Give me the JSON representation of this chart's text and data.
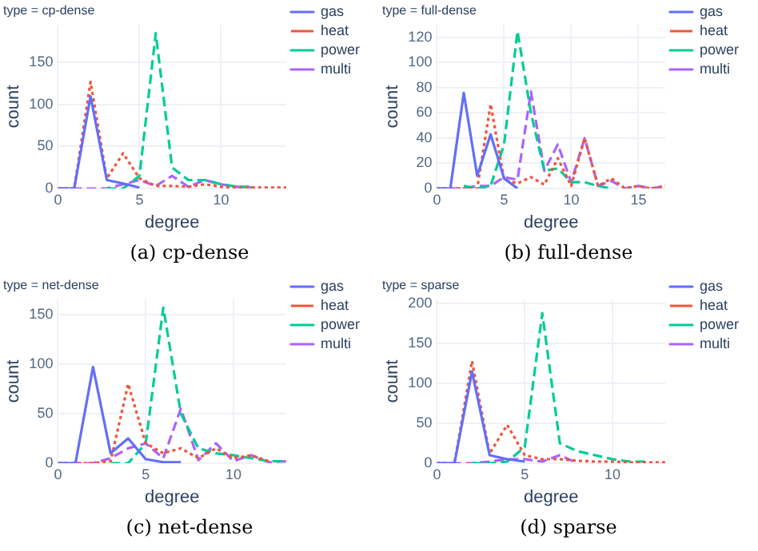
{
  "chart_data": [
    {
      "type": "line",
      "title": "type = cp-dense",
      "xlabel": "degree",
      "ylabel": "count",
      "annotations": [
        "(a) cp-dense"
      ],
      "xlim": [
        0,
        14
      ],
      "xticks": [
        0,
        5,
        10
      ],
      "ylim": [
        0,
        195
      ],
      "yticks": [
        0,
        50,
        100,
        150
      ],
      "grid": true,
      "legend": "top right",
      "series": [
        {
          "name": "gas",
          "color": "#636efa",
          "line_style": "solid",
          "x": [
            0,
            1,
            2,
            3,
            4,
            5
          ],
          "values": [
            0,
            0,
            110,
            10,
            6,
            1
          ]
        },
        {
          "name": "heat",
          "color": "#ef553b",
          "line_style": "dotted",
          "x": [
            0,
            1,
            2,
            3,
            4,
            5,
            6,
            7,
            8,
            9,
            10,
            11,
            12,
            13,
            14
          ],
          "values": [
            0,
            0,
            127,
            12,
            42,
            12,
            3,
            3,
            2,
            5,
            2,
            1,
            1,
            1,
            1
          ]
        },
        {
          "name": "power",
          "color": "#00cc96",
          "line_style": "dashed",
          "x": [
            3,
            4,
            5,
            6,
            7,
            8,
            9,
            10,
            11,
            12
          ],
          "values": [
            0,
            0,
            15,
            185,
            25,
            10,
            10,
            5,
            2,
            2
          ]
        },
        {
          "name": "multi",
          "color": "#ab63fa",
          "line_style": "dashed",
          "x": [
            0,
            1,
            2,
            3,
            4,
            5,
            6,
            7,
            8,
            9,
            10,
            11,
            12
          ],
          "values": [
            0,
            0,
            0,
            0,
            5,
            10,
            3,
            15,
            2,
            10,
            5,
            2,
            1
          ]
        }
      ]
    },
    {
      "type": "line",
      "title": "type = full-dense",
      "xlabel": "degree",
      "ylabel": "count",
      "annotations": [
        "(b) full-dense"
      ],
      "xlim": [
        0,
        17
      ],
      "xticks": [
        0,
        5,
        10,
        15
      ],
      "ylim": [
        0,
        130
      ],
      "yticks": [
        0,
        20,
        40,
        60,
        80,
        100,
        120
      ],
      "grid": true,
      "legend": "top right",
      "series": [
        {
          "name": "gas",
          "color": "#636efa",
          "line_style": "solid",
          "x": [
            0,
            1,
            2,
            3,
            4,
            5,
            6
          ],
          "values": [
            0,
            0,
            76,
            10,
            43,
            8,
            0
          ]
        },
        {
          "name": "heat",
          "color": "#ef553b",
          "line_style": "dotted",
          "x": [
            0,
            1,
            2,
            3,
            4,
            5,
            6,
            7,
            8,
            9,
            10,
            11,
            12,
            13,
            14,
            15,
            16,
            17
          ],
          "values": [
            0,
            0,
            0,
            0,
            67,
            7,
            4,
            9,
            3,
            24,
            2,
            40,
            2,
            8,
            0,
            2,
            0,
            2
          ]
        },
        {
          "name": "power",
          "color": "#00cc96",
          "line_style": "dashed",
          "x": [
            2,
            3,
            4,
            5,
            6,
            7,
            8,
            9,
            10,
            11,
            12,
            13
          ],
          "values": [
            2,
            0,
            2,
            35,
            125,
            60,
            14,
            16,
            5,
            5,
            2,
            0
          ]
        },
        {
          "name": "multi",
          "color": "#ab63fa",
          "line_style": "dashed",
          "x": [
            0,
            1,
            2,
            3,
            4,
            5,
            6,
            7,
            8,
            9,
            10,
            11,
            12,
            13,
            14,
            15,
            16,
            17
          ],
          "values": [
            0,
            0,
            0,
            2,
            2,
            9,
            7,
            77,
            14,
            35,
            5,
            40,
            2,
            6,
            0,
            2,
            0,
            2
          ]
        }
      ]
    },
    {
      "type": "line",
      "title": "type = net-dense",
      "xlabel": "degree",
      "ylabel": "count",
      "annotations": [
        "(c) net-dense"
      ],
      "xlim": [
        0,
        13
      ],
      "xticks": [
        0,
        5,
        10
      ],
      "ylim": [
        0,
        165
      ],
      "yticks": [
        0,
        50,
        100,
        150
      ],
      "grid": true,
      "legend": "top right",
      "series": [
        {
          "name": "gas",
          "color": "#636efa",
          "line_style": "solid",
          "x": [
            0,
            1,
            2,
            3,
            4,
            5,
            6,
            7
          ],
          "values": [
            0,
            0,
            97,
            10,
            25,
            4,
            1,
            1
          ]
        },
        {
          "name": "heat",
          "color": "#ef553b",
          "line_style": "dotted",
          "x": [
            0,
            1,
            2,
            3,
            4,
            5,
            6,
            7,
            8,
            9,
            10,
            11,
            12
          ],
          "values": [
            0,
            0,
            0,
            2,
            80,
            20,
            10,
            15,
            5,
            15,
            5,
            8,
            2
          ]
        },
        {
          "name": "power",
          "color": "#00cc96",
          "line_style": "dashed",
          "x": [
            3,
            4,
            5,
            6,
            7,
            8,
            9,
            10,
            11,
            12,
            13
          ],
          "values": [
            0,
            0,
            20,
            157,
            50,
            15,
            10,
            8,
            5,
            2,
            2
          ]
        },
        {
          "name": "multi",
          "color": "#ab63fa",
          "line_style": "dashed",
          "x": [
            0,
            1,
            2,
            3,
            4,
            5,
            6,
            7,
            8,
            9,
            10,
            11,
            12,
            13
          ],
          "values": [
            0,
            0,
            0,
            5,
            15,
            20,
            5,
            55,
            3,
            20,
            2,
            8,
            1,
            2
          ]
        }
      ]
    },
    {
      "type": "line",
      "title": "type = sparse",
      "xlabel": "degree",
      "ylabel": "count",
      "annotations": [
        "(d) sparse"
      ],
      "xlim": [
        0,
        13
      ],
      "xticks": [
        0,
        5,
        10
      ],
      "ylim": [
        0,
        205
      ],
      "yticks": [
        0,
        50,
        100,
        150,
        200
      ],
      "grid": true,
      "legend": "top right",
      "series": [
        {
          "name": "gas",
          "color": "#636efa",
          "line_style": "solid",
          "x": [
            0,
            1,
            2,
            3,
            4,
            5
          ],
          "values": [
            0,
            0,
            115,
            10,
            5,
            2
          ]
        },
        {
          "name": "heat",
          "color": "#ef553b",
          "line_style": "dotted",
          "x": [
            0,
            1,
            2,
            3,
            4,
            5,
            6,
            7,
            8,
            9,
            10,
            11,
            12,
            13
          ],
          "values": [
            0,
            0,
            128,
            12,
            48,
            10,
            5,
            5,
            3,
            2,
            2,
            1,
            1,
            1
          ]
        },
        {
          "name": "power",
          "color": "#00cc96",
          "line_style": "dashed",
          "x": [
            2,
            3,
            4,
            5,
            6,
            7,
            8,
            9,
            10,
            11,
            12
          ],
          "values": [
            0,
            0,
            2,
            20,
            188,
            25,
            15,
            10,
            5,
            2,
            2
          ]
        },
        {
          "name": "multi",
          "color": "#ab63fa",
          "line_style": "dashed",
          "x": [
            0,
            1,
            2,
            3,
            4,
            5,
            6,
            7,
            8
          ],
          "values": [
            0,
            0,
            0,
            2,
            5,
            5,
            2,
            10,
            0
          ]
        }
      ]
    }
  ]
}
